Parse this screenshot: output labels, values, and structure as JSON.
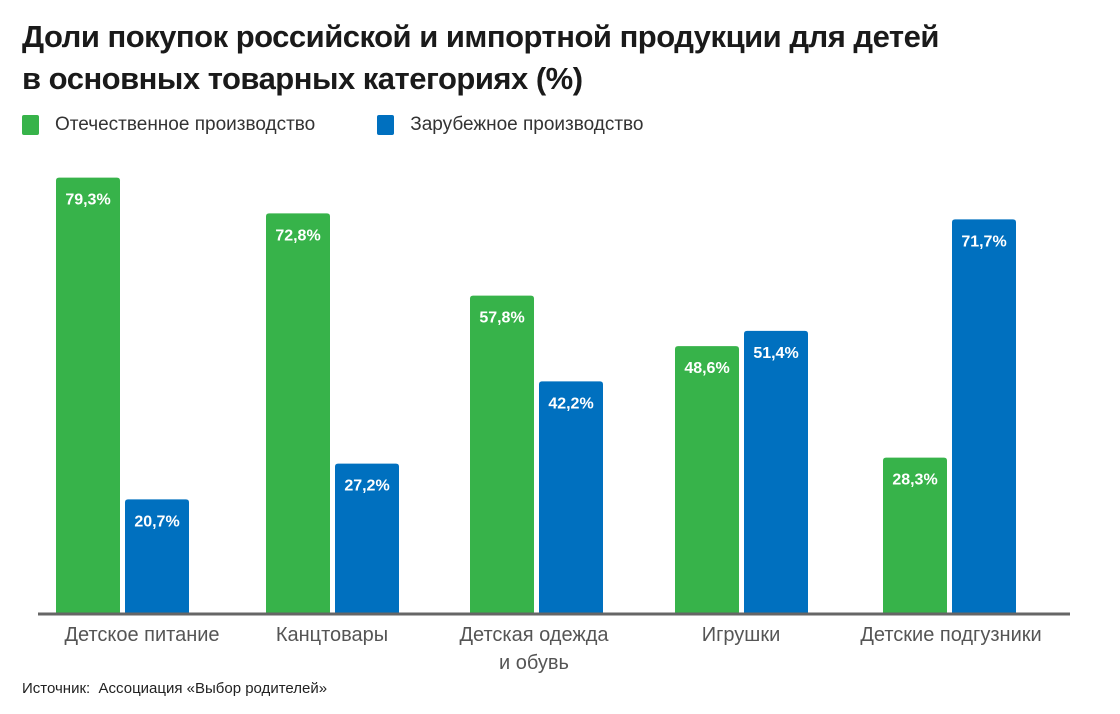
{
  "chart_data": {
    "type": "bar",
    "title": "Доли покупок российской и импортной продукции для детей в основных товарных категориях (%)",
    "title_lines": [
      "Доли покупок российской и импортной продукции для детей",
      "в основных товарных категориях (%)"
    ],
    "categories": [
      "Детское питание",
      "Канцтовары",
      "Детская одежда и обувь",
      "Игрушки",
      "Детские подгузники"
    ],
    "category_lines": [
      [
        "Детское питание"
      ],
      [
        "Канцтовары"
      ],
      [
        "Детская одежда",
        "и обувь"
      ],
      [
        "Игрушки"
      ],
      [
        "Детские подгузники"
      ]
    ],
    "series": [
      {
        "name": "Отечественное производство",
        "color": "#37b34a",
        "values": [
          79.3,
          72.8,
          57.8,
          48.6,
          28.3
        ],
        "labels": [
          "79,3%",
          "72,8%",
          "57,8%",
          "48,6%",
          "28,3%"
        ]
      },
      {
        "name": "Зарубежное производство",
        "color": "#0070bf",
        "values": [
          20.7,
          27.2,
          42.2,
          51.4,
          71.7
        ],
        "labels": [
          "20,7%",
          "27,2%",
          "42,2%",
          "51,4%",
          "71,7%"
        ]
      }
    ],
    "xlabel": "",
    "ylabel": "",
    "ylim": [
      0,
      80
    ],
    "grid": false,
    "legend": "top-left"
  },
  "source": {
    "label": "Источник:",
    "text": "Ассоциация «Выбор родителей»"
  }
}
